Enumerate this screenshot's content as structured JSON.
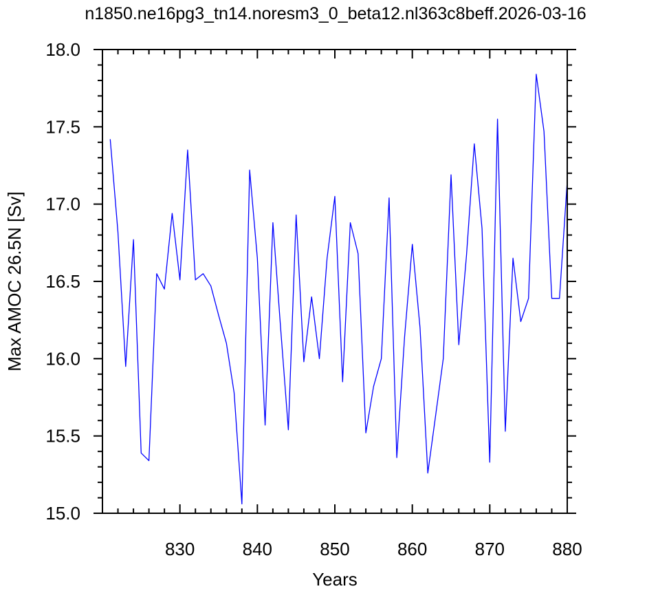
{
  "chart_data": {
    "type": "line",
    "title": "n1850.ne16pg3_tn14.noresm3_0_beta12.nl363c8beff.2026-03-16",
    "xlabel": "Years",
    "ylabel": "Max AMOC 26.5N [Sv]",
    "xlim": [
      820,
      880
    ],
    "ylim": [
      15.0,
      18.0
    ],
    "xticks": [
      830,
      840,
      850,
      860,
      870,
      880
    ],
    "xtick_labels": [
      "830",
      "840",
      "850",
      "860",
      "870",
      "880"
    ],
    "yticks": [
      15.0,
      15.5,
      16.0,
      16.5,
      17.0,
      17.5,
      18.0
    ],
    "ytick_labels": [
      "15.0",
      "15.5",
      "16.0",
      "16.5",
      "17.0",
      "17.5",
      "18.0"
    ],
    "grid": false,
    "line_color": "#0000ff",
    "series": [
      {
        "x": [
          821,
          822,
          823,
          824,
          825,
          826,
          827,
          828,
          829,
          830,
          831,
          832,
          833,
          834,
          835,
          836,
          837,
          838,
          839,
          840,
          841,
          842,
          843,
          844,
          845,
          846,
          847,
          848,
          849,
          850,
          851,
          852,
          853,
          854,
          855,
          856,
          857,
          858,
          859,
          860,
          861,
          862,
          863,
          864,
          865,
          866,
          867,
          868,
          869,
          870,
          871,
          872,
          873,
          874,
          875,
          876,
          877,
          878,
          879,
          880
        ],
        "values": [
          17.42,
          16.82,
          15.95,
          16.77,
          15.39,
          15.34,
          16.55,
          16.45,
          16.94,
          16.51,
          17.35,
          16.51,
          16.55,
          16.47,
          16.28,
          16.1,
          15.78,
          15.06,
          17.22,
          16.65,
          15.57,
          16.88,
          16.2,
          15.54,
          16.93,
          15.98,
          16.4,
          16.0,
          16.65,
          17.05,
          15.85,
          16.88,
          16.68,
          15.52,
          15.82,
          16.0,
          17.04,
          15.36,
          16.14,
          16.74,
          16.2,
          15.26,
          15.63,
          16.0,
          17.19,
          16.09,
          16.67,
          17.39,
          16.84,
          15.33,
          17.55,
          15.53,
          16.65,
          16.24,
          16.39,
          17.84,
          17.47,
          16.39,
          16.39,
          17.15
        ]
      }
    ]
  }
}
